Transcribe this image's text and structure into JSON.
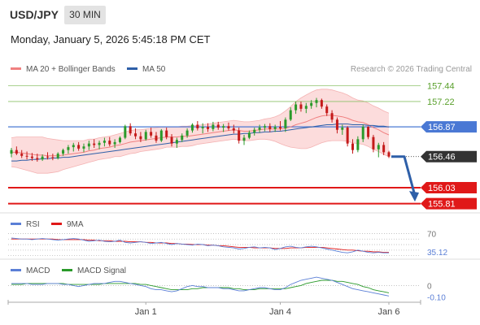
{
  "header": {
    "symbol": "USD/JPY",
    "timeframe": "30 MIN",
    "datetime": "Monday, January 5, 2026 5:45:18 PM CET"
  },
  "legend": {
    "ma20_label": "MA 20 + Bollinger Bands",
    "ma50_label": "MA 50",
    "credit": "Research © 2026 Trading Central"
  },
  "colors": {
    "up": "#2a9a2a",
    "down": "#c41a1a",
    "ma20": "#f08080",
    "ma50": "#2e5fa8",
    "bollinger_fill": "#fbd6d6",
    "target_green": "#8dc26a",
    "pivot_blue": "#4a78d4",
    "support_red": "#e01818",
    "price_box": "#333333",
    "rsi": "#5b7fd6",
    "rsi_ma": "#e01818",
    "macd": "#5b7fd6",
    "macd_signal": "#2a9a2a"
  },
  "chart_data": [
    {
      "type": "candlestick",
      "ylim": [
        155.75,
        157.5
      ],
      "levels": [
        {
          "value": 157.44,
          "label": "157.44",
          "kind": "target"
        },
        {
          "value": 157.22,
          "label": "157.22",
          "kind": "target"
        },
        {
          "value": 156.87,
          "label": "156.87",
          "kind": "pivot"
        },
        {
          "value": 156.46,
          "label": "156.46",
          "kind": "last"
        },
        {
          "value": 156.03,
          "label": "156.03",
          "kind": "support"
        },
        {
          "value": 155.81,
          "label": "155.81",
          "kind": "support"
        }
      ],
      "x_ticks": [
        {
          "index": 26,
          "label": "Jan 1"
        },
        {
          "index": 52,
          "label": "Jan 4"
        },
        {
          "index": 73,
          "label": "Jan 6"
        }
      ],
      "candles": [
        [
          156.5,
          156.58,
          156.45,
          156.55
        ],
        [
          156.55,
          156.6,
          156.48,
          156.5
        ],
        [
          156.5,
          156.55,
          156.44,
          156.47
        ],
        [
          156.47,
          156.53,
          156.42,
          156.46
        ],
        [
          156.46,
          156.51,
          156.4,
          156.44
        ],
        [
          156.44,
          156.5,
          156.39,
          156.42
        ],
        [
          156.42,
          156.49,
          156.4,
          156.46
        ],
        [
          156.46,
          156.52,
          156.42,
          156.45
        ],
        [
          156.45,
          156.5,
          156.41,
          156.44
        ],
        [
          156.44,
          156.52,
          156.42,
          156.5
        ],
        [
          156.5,
          156.57,
          156.47,
          156.55
        ],
        [
          156.55,
          156.62,
          156.5,
          156.59
        ],
        [
          156.59,
          156.65,
          156.53,
          156.62
        ],
        [
          156.62,
          156.66,
          156.54,
          156.57
        ],
        [
          156.57,
          156.64,
          156.52,
          156.6
        ],
        [
          156.6,
          156.68,
          156.55,
          156.64
        ],
        [
          156.64,
          156.7,
          156.58,
          156.62
        ],
        [
          156.62,
          156.68,
          156.56,
          156.65
        ],
        [
          156.65,
          156.72,
          156.6,
          156.68
        ],
        [
          156.68,
          156.73,
          156.6,
          156.63
        ],
        [
          156.63,
          156.7,
          156.58,
          156.66
        ],
        [
          156.66,
          156.74,
          156.64,
          156.72
        ],
        [
          156.72,
          156.9,
          156.7,
          156.88
        ],
        [
          156.88,
          156.92,
          156.75,
          156.78
        ],
        [
          156.78,
          156.85,
          156.7,
          156.74
        ],
        [
          156.74,
          156.8,
          156.66,
          156.7
        ],
        [
          156.7,
          156.83,
          156.68,
          156.8
        ],
        [
          156.8,
          156.86,
          156.72,
          156.75
        ],
        [
          156.75,
          156.8,
          156.65,
          156.68
        ],
        [
          156.68,
          156.84,
          156.66,
          156.82
        ],
        [
          156.82,
          156.86,
          156.7,
          156.73
        ],
        [
          156.73,
          156.77,
          156.6,
          156.64
        ],
        [
          156.64,
          156.72,
          156.58,
          156.69
        ],
        [
          156.69,
          156.78,
          156.66,
          156.75
        ],
        [
          156.75,
          156.85,
          156.72,
          156.82
        ],
        [
          156.82,
          156.92,
          156.79,
          156.9
        ],
        [
          156.9,
          156.95,
          156.82,
          156.85
        ],
        [
          156.85,
          156.92,
          156.78,
          156.87
        ],
        [
          156.87,
          156.92,
          156.8,
          156.84
        ],
        [
          156.84,
          156.94,
          156.81,
          156.9
        ],
        [
          156.9,
          156.94,
          156.83,
          156.86
        ],
        [
          156.86,
          156.91,
          156.8,
          156.88
        ],
        [
          156.88,
          156.93,
          156.82,
          156.85
        ],
        [
          156.85,
          156.9,
          156.78,
          156.82
        ],
        [
          156.82,
          156.86,
          156.64,
          156.68
        ],
        [
          156.68,
          156.76,
          156.62,
          156.72
        ],
        [
          156.72,
          156.82,
          156.7,
          156.79
        ],
        [
          156.79,
          156.86,
          156.75,
          156.83
        ],
        [
          156.83,
          156.9,
          156.79,
          156.86
        ],
        [
          156.86,
          156.91,
          156.81,
          156.88
        ],
        [
          156.88,
          156.92,
          156.8,
          156.84
        ],
        [
          156.84,
          156.9,
          156.8,
          156.87
        ],
        [
          156.87,
          156.95,
          156.82,
          156.85
        ],
        [
          156.85,
          157.0,
          156.8,
          156.97
        ],
        [
          156.97,
          157.14,
          156.95,
          157.1
        ],
        [
          157.1,
          157.22,
          157.05,
          157.18
        ],
        [
          157.18,
          157.22,
          157.08,
          157.12
        ],
        [
          157.12,
          157.2,
          157.06,
          157.16
        ],
        [
          157.16,
          157.24,
          157.12,
          157.2
        ],
        [
          157.2,
          157.27,
          157.14,
          157.24
        ],
        [
          157.24,
          157.26,
          157.12,
          157.15
        ],
        [
          157.15,
          157.18,
          157.02,
          157.06
        ],
        [
          157.06,
          157.1,
          156.93,
          156.97
        ],
        [
          156.97,
          157.0,
          156.78,
          156.83
        ],
        [
          156.83,
          156.9,
          156.76,
          156.86
        ],
        [
          156.86,
          156.88,
          156.6,
          156.64
        ],
        [
          156.64,
          156.7,
          156.5,
          156.55
        ],
        [
          156.55,
          156.74,
          156.52,
          156.7
        ],
        [
          156.7,
          156.9,
          156.66,
          156.87
        ],
        [
          156.87,
          156.88,
          156.7,
          156.73
        ],
        [
          156.73,
          156.76,
          156.52,
          156.56
        ],
        [
          156.56,
          156.65,
          156.45,
          156.62
        ],
        [
          156.62,
          156.66,
          156.48,
          156.52
        ],
        [
          156.52,
          156.54,
          156.44,
          156.46
        ]
      ],
      "ma20": [
        156.52,
        156.52,
        156.51,
        156.5,
        156.49,
        156.48,
        156.48,
        156.47,
        156.47,
        156.47,
        156.48,
        156.49,
        156.5,
        156.51,
        156.52,
        156.54,
        156.55,
        156.57,
        156.58,
        156.59,
        156.61,
        156.62,
        156.64,
        156.66,
        156.67,
        156.68,
        156.69,
        156.7,
        156.71,
        156.72,
        156.73,
        156.73,
        156.73,
        156.74,
        156.74,
        156.75,
        156.76,
        156.77,
        156.78,
        156.79,
        156.8,
        156.81,
        156.82,
        156.83,
        156.82,
        156.81,
        156.81,
        156.82,
        156.83,
        156.84,
        156.84,
        156.84,
        156.84,
        156.85,
        156.87,
        156.9,
        156.92,
        156.94,
        156.97,
        157.0,
        157.02,
        157.03,
        157.03,
        157.02,
        157.01,
        156.99,
        156.96,
        156.94,
        156.93,
        156.9,
        156.86,
        156.83,
        156.79,
        156.76
      ],
      "ma50": [
        156.4,
        156.4,
        156.41,
        156.41,
        156.42,
        156.42,
        156.43,
        156.43,
        156.44,
        156.44,
        156.45,
        156.45,
        156.46,
        156.47,
        156.48,
        156.49,
        156.5,
        156.51,
        156.52,
        156.53,
        156.54,
        156.55,
        156.56,
        156.57,
        156.58,
        156.59,
        156.6,
        156.61,
        156.62,
        156.63,
        156.64,
        156.65,
        156.66,
        156.67,
        156.68,
        156.69,
        156.7,
        156.71,
        156.72,
        156.73,
        156.74,
        156.75,
        156.76,
        156.77,
        156.77,
        156.78,
        156.78,
        156.79,
        156.79,
        156.8,
        156.8,
        156.81,
        156.81,
        156.82,
        156.83,
        156.84,
        156.85,
        156.86,
        156.87,
        156.88,
        156.89,
        156.9,
        156.9,
        156.91,
        156.91,
        156.91,
        156.9,
        156.9,
        156.9,
        156.89,
        156.89,
        156.88,
        156.88,
        156.87
      ],
      "bb_width": [
        0.2,
        0.21,
        0.22,
        0.23,
        0.24,
        0.25,
        0.25,
        0.24,
        0.23,
        0.22,
        0.2,
        0.19,
        0.18,
        0.17,
        0.16,
        0.16,
        0.15,
        0.15,
        0.15,
        0.15,
        0.15,
        0.16,
        0.16,
        0.16,
        0.16,
        0.15,
        0.15,
        0.15,
        0.15,
        0.15,
        0.14,
        0.14,
        0.14,
        0.14,
        0.14,
        0.14,
        0.13,
        0.13,
        0.13,
        0.13,
        0.13,
        0.13,
        0.13,
        0.13,
        0.13,
        0.13,
        0.13,
        0.13,
        0.13,
        0.14,
        0.15,
        0.17,
        0.2,
        0.24,
        0.28,
        0.32,
        0.35,
        0.37,
        0.38,
        0.38,
        0.37,
        0.36,
        0.35,
        0.34,
        0.33,
        0.32,
        0.31,
        0.3,
        0.3,
        0.3,
        0.3,
        0.3,
        0.3,
        0.3
      ],
      "forecast": {
        "from": 156.46,
        "to": 155.85
      }
    },
    {
      "type": "line",
      "title": "RSI",
      "ma_label": "9MA",
      "ylim": [
        28,
        78
      ],
      "level_label": "70",
      "last_label": "35.12",
      "rsi": [
        62,
        61,
        60,
        60,
        59,
        60,
        61,
        60,
        59,
        58,
        59,
        60,
        61,
        60,
        58,
        56,
        57,
        58,
        56,
        55,
        56,
        58,
        54,
        53,
        54,
        55,
        54,
        52,
        53,
        54,
        52,
        50,
        52,
        51,
        50,
        49,
        51,
        50,
        48,
        49,
        48,
        46,
        45,
        44,
        42,
        43,
        45,
        46,
        44,
        45,
        44,
        41,
        43,
        46,
        47,
        45,
        44,
        46,
        47,
        46,
        44,
        42,
        40,
        38,
        36,
        35,
        37,
        40,
        38,
        36,
        35,
        36,
        35,
        35
      ],
      "rsi_ma": [
        60,
        60,
        60,
        60,
        60,
        60,
        60,
        60,
        60,
        59,
        59,
        59,
        59,
        59,
        59,
        58,
        58,
        57,
        57,
        57,
        56,
        56,
        56,
        55,
        55,
        55,
        54,
        54,
        53,
        53,
        53,
        52,
        52,
        51,
        51,
        50,
        50,
        50,
        49,
        49,
        48,
        48,
        47,
        46,
        45,
        45,
        45,
        44,
        44,
        44,
        44,
        43,
        43,
        43,
        44,
        44,
        44,
        45,
        45,
        45,
        45,
        44,
        43,
        42,
        41,
        40,
        40,
        39,
        38,
        38,
        37,
        37,
        36,
        36
      ]
    },
    {
      "type": "line",
      "title": "MACD",
      "signal_label": "MACD Signal",
      "ylim": [
        -0.16,
        0.12
      ],
      "zero_label": "0",
      "last_label": "-0.10",
      "macd": [
        0.02,
        0.02,
        0.02,
        0.02,
        0.01,
        0.01,
        0.01,
        0.02,
        0.02,
        0.02,
        0.01,
        0.01,
        0.0,
        -0.01,
        0.0,
        0.01,
        0.02,
        0.02,
        0.02,
        0.03,
        0.04,
        0.04,
        0.03,
        0.02,
        0.01,
        0.0,
        -0.01,
        -0.03,
        -0.04,
        -0.04,
        -0.05,
        -0.06,
        -0.05,
        -0.03,
        -0.01,
        0.0,
        -0.01,
        -0.01,
        -0.02,
        -0.02,
        -0.02,
        -0.03,
        -0.03,
        -0.04,
        -0.05,
        -0.05,
        -0.04,
        -0.03,
        -0.02,
        -0.02,
        -0.03,
        -0.04,
        -0.04,
        -0.02,
        0.01,
        0.03,
        0.05,
        0.06,
        0.07,
        0.08,
        0.07,
        0.06,
        0.05,
        0.03,
        0.01,
        -0.01,
        -0.03,
        -0.04,
        -0.05,
        -0.06,
        -0.07,
        -0.08,
        -0.09,
        -0.1
      ],
      "signal": [
        0.01,
        0.01,
        0.01,
        0.02,
        0.02,
        0.02,
        0.02,
        0.02,
        0.02,
        0.02,
        0.02,
        0.01,
        0.01,
        0.01,
        0.01,
        0.01,
        0.01,
        0.01,
        0.02,
        0.02,
        0.02,
        0.02,
        0.02,
        0.02,
        0.02,
        0.01,
        0.01,
        0.0,
        -0.01,
        -0.02,
        -0.03,
        -0.04,
        -0.04,
        -0.04,
        -0.04,
        -0.03,
        -0.03,
        -0.02,
        -0.02,
        -0.02,
        -0.02,
        -0.02,
        -0.02,
        -0.03,
        -0.03,
        -0.04,
        -0.04,
        -0.04,
        -0.03,
        -0.03,
        -0.03,
        -0.03,
        -0.03,
        -0.03,
        -0.02,
        -0.01,
        0.0,
        0.02,
        0.03,
        0.04,
        0.05,
        0.05,
        0.05,
        0.04,
        0.04,
        0.03,
        0.02,
        0.01,
        -0.01,
        -0.02,
        -0.04,
        -0.05,
        -0.06,
        -0.07
      ]
    }
  ]
}
